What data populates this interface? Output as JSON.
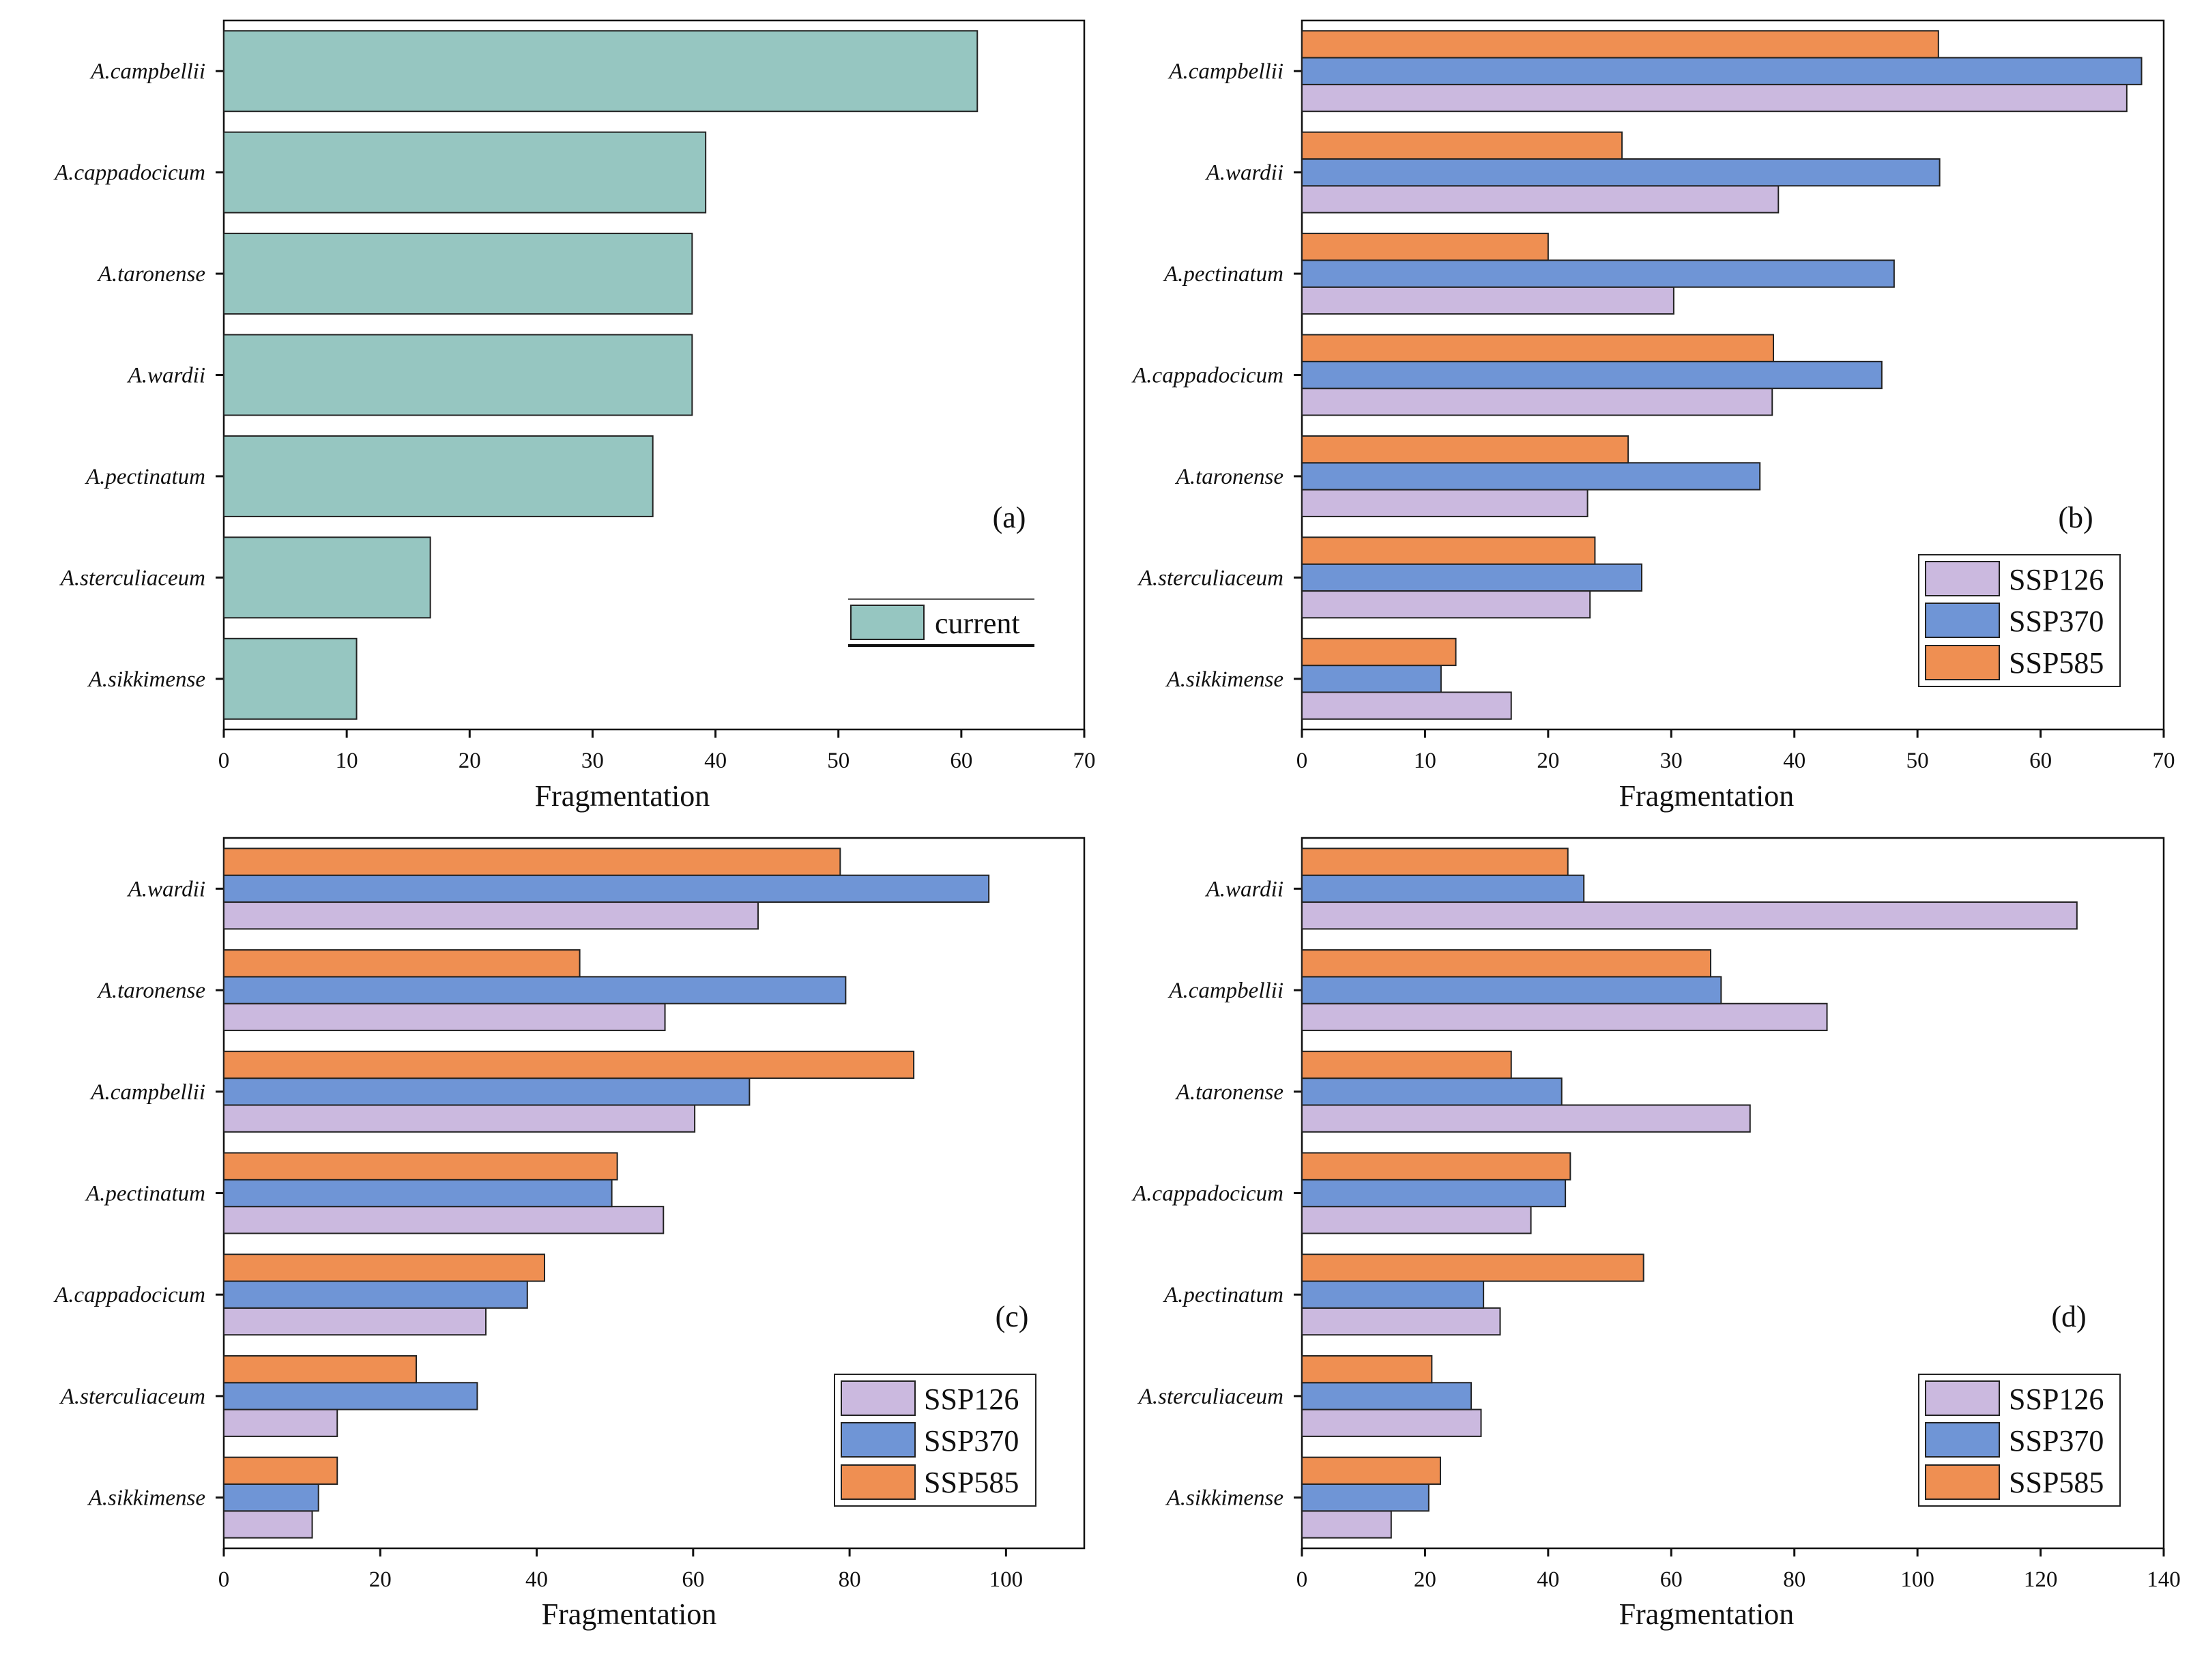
{
  "figure": {
    "colors": {
      "current": "#96c6c1",
      "SSP126": "#cbb9df",
      "SSP370": "#6f95d6",
      "SSP585": "#ef8f52",
      "bar_stroke": "#222222",
      "axis": "#111111"
    }
  },
  "chart_data": [
    {
      "id": "a",
      "type": "bar",
      "orientation": "horizontal",
      "panel_label": "(a)",
      "xlabel": "Fragmentation",
      "ylabel": "",
      "xlim": [
        0,
        70
      ],
      "xticks": [
        0,
        10,
        20,
        30,
        40,
        50,
        60,
        70
      ],
      "categories": [
        "A.campbellii",
        "A.cappadocicum",
        "A.taronense",
        "A.wardii",
        "A.pectinatum",
        "A.sterculiaceum",
        "A.sikkimense"
      ],
      "series": [
        {
          "name": "current",
          "values": [
            61.3,
            39.2,
            38.1,
            38.1,
            34.9,
            16.8,
            10.8
          ]
        }
      ],
      "legend": [
        "current"
      ],
      "legend_position": "lower-right"
    },
    {
      "id": "b",
      "type": "bar",
      "orientation": "horizontal",
      "panel_label": "(b)",
      "xlabel": "Fragmentation",
      "ylabel": "",
      "xlim": [
        0,
        70
      ],
      "xticks": [
        0,
        10,
        20,
        30,
        40,
        50,
        60,
        70
      ],
      "categories": [
        "A.campbellii",
        "A.wardii",
        "A.pectinatum",
        "A.cappadocicum",
        "A.taronense",
        "A.sterculiaceum",
        "A.sikkimense"
      ],
      "series": [
        {
          "name": "SSP126",
          "values": [
            67.0,
            38.7,
            30.2,
            38.2,
            23.2,
            23.4,
            17.0
          ]
        },
        {
          "name": "SSP370",
          "values": [
            68.2,
            51.8,
            48.1,
            47.1,
            37.2,
            27.6,
            11.3
          ]
        },
        {
          "name": "SSP585",
          "values": [
            51.7,
            26.0,
            20.0,
            38.3,
            26.5,
            23.8,
            12.5
          ]
        }
      ],
      "legend": [
        "SSP126",
        "SSP370",
        "SSP585"
      ],
      "legend_position": "lower-right"
    },
    {
      "id": "c",
      "type": "bar",
      "orientation": "horizontal",
      "panel_label": "(c)",
      "xlabel": "Fragmentation",
      "ylabel": "",
      "xlim": [
        0,
        110
      ],
      "xticks": [
        0,
        20,
        40,
        60,
        80,
        100
      ],
      "categories": [
        "A.wardii",
        "A.taronense",
        "A.campbellii",
        "A.pectinatum",
        "A.cappadocicum",
        "A.sterculiaceum",
        "A.sikkimense"
      ],
      "series": [
        {
          "name": "SSP126",
          "values": [
            68.3,
            56.4,
            60.2,
            56.2,
            33.5,
            14.5,
            11.3
          ]
        },
        {
          "name": "SSP370",
          "values": [
            97.8,
            79.5,
            67.2,
            49.6,
            38.8,
            32.4,
            12.1
          ]
        },
        {
          "name": "SSP585",
          "values": [
            78.8,
            45.5,
            88.2,
            50.3,
            41.0,
            24.6,
            14.5
          ]
        }
      ],
      "legend": [
        "SSP126",
        "SSP370",
        "SSP585"
      ],
      "legend_position": "lower-right"
    },
    {
      "id": "d",
      "type": "bar",
      "orientation": "horizontal",
      "panel_label": "(d)",
      "xlabel": "Fragmentation",
      "ylabel": "",
      "xlim": [
        0,
        140
      ],
      "xticks": [
        0,
        20,
        40,
        60,
        80,
        100,
        120,
        140
      ],
      "categories": [
        "A.wardii",
        "A.campbellii",
        "A.taronense",
        "A.cappadocicum",
        "A.pectinatum",
        "A.sterculiaceum",
        "A.sikkimense"
      ],
      "series": [
        {
          "name": "SSP126",
          "values": [
            125.9,
            85.3,
            72.8,
            37.2,
            32.2,
            29.1,
            14.5
          ]
        },
        {
          "name": "SSP370",
          "values": [
            45.8,
            68.1,
            42.2,
            42.8,
            29.5,
            27.5,
            20.6
          ]
        },
        {
          "name": "SSP585",
          "values": [
            43.2,
            66.4,
            34.0,
            43.6,
            55.5,
            21.1,
            22.5
          ]
        }
      ],
      "legend": [
        "SSP126",
        "SSP370",
        "SSP585"
      ],
      "legend_position": "lower-right"
    }
  ]
}
